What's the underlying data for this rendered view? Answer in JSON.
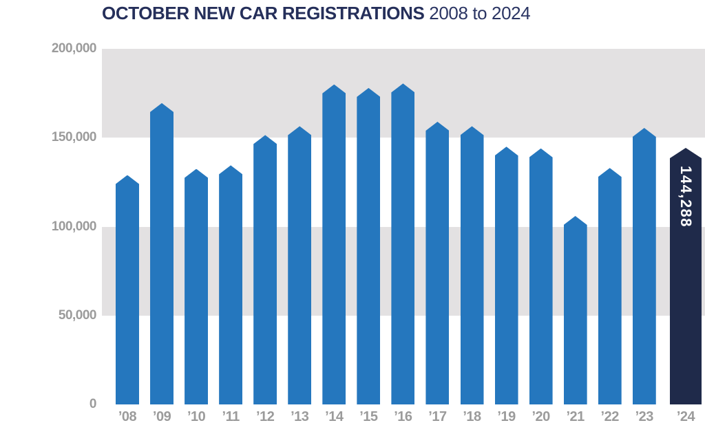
{
  "title": {
    "main": "OCTOBER NEW CAR REGISTRATIONS",
    "range": "2008 to 2024"
  },
  "chart_data": {
    "type": "bar",
    "title": "OCTOBER NEW CAR REGISTRATIONS 2008 to 2024",
    "xlabel": "",
    "ylabel": "",
    "categories": [
      "’08",
      "’09",
      "’10",
      "’11",
      "’12",
      "’13",
      "’14",
      "’15",
      "’16",
      "’17",
      "’18",
      "’19",
      "’20",
      "’21",
      "’22",
      "’23",
      "’24"
    ],
    "years": [
      2008,
      2009,
      2010,
      2011,
      2012,
      2013,
      2014,
      2015,
      2016,
      2017,
      2018,
      2019,
      2020,
      2021,
      2022,
      2023,
      2024
    ],
    "values": [
      129000,
      169500,
      132500,
      134500,
      151500,
      156500,
      180000,
      178000,
      180500,
      159000,
      156500,
      145000,
      144000,
      106000,
      133000,
      155500,
      144288
    ],
    "highlight": {
      "index": 16,
      "label": "144,288",
      "value": 144288
    },
    "ylim": [
      0,
      200000
    ],
    "yticks": {
      "values": [
        0,
        50000,
        100000,
        150000,
        200000
      ],
      "labels": [
        "0",
        "50,000",
        "100,000",
        "150,000",
        "200,000"
      ]
    },
    "grid_bands": {
      "style": "alternating gray horizontal background bands",
      "ranges": [
        [
          50000,
          100000
        ],
        [
          150000,
          200000
        ]
      ]
    },
    "legend": "none",
    "colors": {
      "bar": "#2577be",
      "highlight_bar": "#1f2a4a",
      "band": "#e3e1e2",
      "axis_text": "#9b9b9b",
      "title_text": "#252f5a",
      "highlight_label_text": "#ffffff"
    }
  }
}
